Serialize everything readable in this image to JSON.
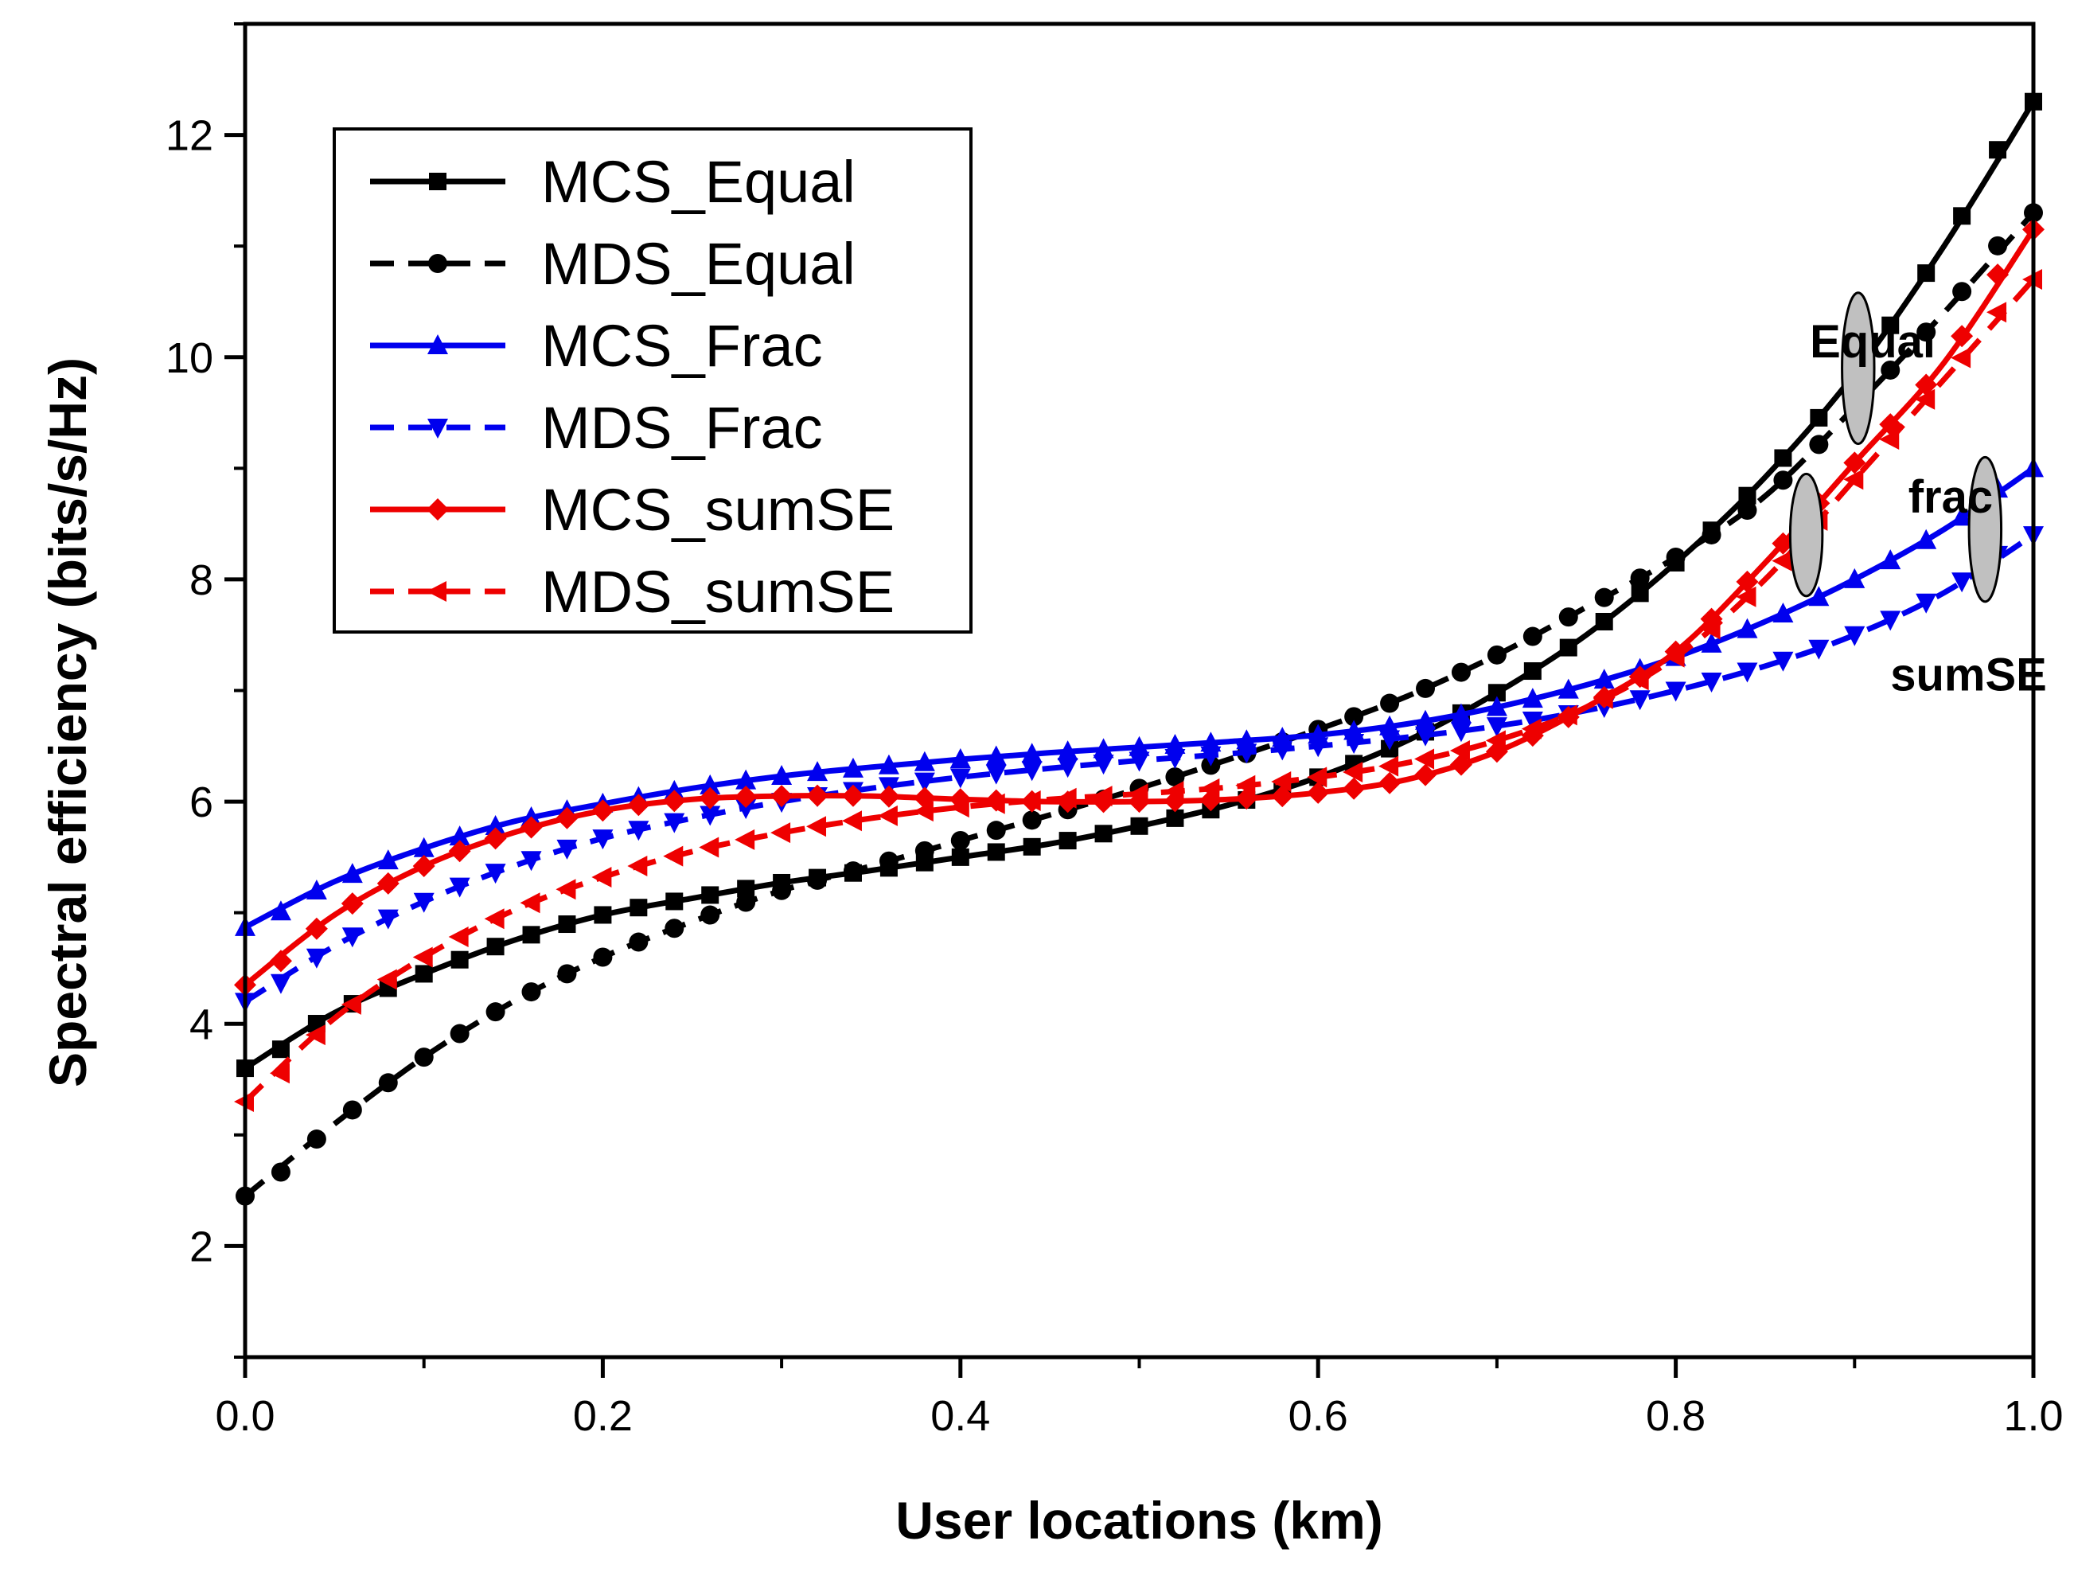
{
  "chart_data": {
    "type": "line",
    "title": "",
    "xlabel": "User locations (km)",
    "ylabel": "Spectral efficiency (bits/s/Hz)",
    "xlim": [
      0.0,
      1.0
    ],
    "ylim": [
      1,
      13
    ],
    "x_ticks": [
      "0.0",
      "0.2",
      "0.4",
      "0.6",
      "0.8",
      "1.0"
    ],
    "y_ticks": [
      "2",
      "4",
      "6",
      "8",
      "10",
      "12"
    ],
    "x_tick_values": [
      0.0,
      0.2,
      0.4,
      0.6,
      0.8,
      1.0
    ],
    "y_tick_values": [
      2,
      4,
      6,
      8,
      10,
      12
    ],
    "legend_position": "top-left",
    "x": [
      0.0,
      0.05,
      0.1,
      0.15,
      0.2,
      0.25,
      0.3,
      0.35,
      0.4,
      0.45,
      0.5,
      0.55,
      0.6,
      0.65,
      0.7,
      0.75,
      0.8,
      0.85,
      0.9,
      0.95,
      1.0
    ],
    "series": [
      {
        "name": "MCS_Equal",
        "color": "#000000",
        "dash": "solid",
        "marker": "square",
        "values": [
          3.6,
          4.1,
          4.45,
          4.75,
          4.98,
          5.13,
          5.27,
          5.38,
          5.5,
          5.62,
          5.78,
          5.97,
          6.22,
          6.55,
          6.98,
          7.5,
          8.15,
          8.92,
          9.85,
          11.0,
          12.3
        ]
      },
      {
        "name": "MDS_Equal",
        "color": "#000000",
        "dash": "dashed",
        "marker": "circle",
        "values": [
          2.45,
          3.1,
          3.7,
          4.2,
          4.6,
          4.92,
          5.2,
          5.42,
          5.65,
          5.88,
          6.12,
          6.38,
          6.65,
          6.95,
          7.32,
          7.75,
          8.2,
          8.75,
          9.55,
          10.4,
          11.3
        ]
      },
      {
        "name": "MCS_Frac",
        "color": "#0000ee",
        "dash": "solid",
        "marker": "triangle-up",
        "values": [
          4.87,
          5.28,
          5.58,
          5.82,
          5.98,
          6.12,
          6.23,
          6.31,
          6.38,
          6.44,
          6.49,
          6.54,
          6.6,
          6.7,
          6.85,
          7.05,
          7.3,
          7.62,
          8.0,
          8.45,
          9.0
        ]
      },
      {
        "name": "MDS_Frac",
        "color": "#0000ee",
        "dash": "dashed",
        "marker": "triangle-down",
        "values": [
          4.2,
          4.7,
          5.1,
          5.42,
          5.67,
          5.85,
          6.0,
          6.12,
          6.22,
          6.3,
          6.37,
          6.43,
          6.5,
          6.58,
          6.68,
          6.82,
          7.0,
          7.22,
          7.5,
          7.88,
          8.4
        ]
      },
      {
        "name": "MCS_sumSE",
        "color": "#ee0000",
        "dash": "solid",
        "marker": "diamond",
        "values": [
          4.35,
          4.98,
          5.42,
          5.72,
          5.92,
          6.02,
          6.05,
          6.05,
          6.02,
          6.0,
          6.0,
          6.02,
          6.08,
          6.2,
          6.45,
          6.85,
          7.35,
          8.15,
          9.05,
          9.95,
          11.15
        ]
      },
      {
        "name": "MDS_sumSE",
        "color": "#ee0000",
        "dash": "dashed",
        "marker": "triangle-left",
        "values": [
          3.3,
          4.05,
          4.6,
          5.02,
          5.32,
          5.55,
          5.72,
          5.85,
          5.95,
          6.02,
          6.07,
          6.13,
          6.22,
          6.35,
          6.55,
          6.85,
          7.3,
          8.0,
          8.9,
          9.8,
          10.7
        ]
      }
    ],
    "annotations": [
      {
        "text": "Equal",
        "x": 0.875,
        "y": 10.0
      },
      {
        "text": "frac",
        "x": 0.93,
        "y": 8.6
      },
      {
        "text": "sumSE",
        "x": 0.92,
        "y": 7.0
      }
    ],
    "ellipses": [
      {
        "x": 0.902,
        "y": 9.9,
        "rx": 0.009,
        "ry": 0.68
      },
      {
        "x": 0.873,
        "y": 8.4,
        "rx": 0.009,
        "ry": 0.55
      },
      {
        "x": 0.973,
        "y": 8.45,
        "rx": 0.009,
        "ry": 0.65
      }
    ]
  }
}
